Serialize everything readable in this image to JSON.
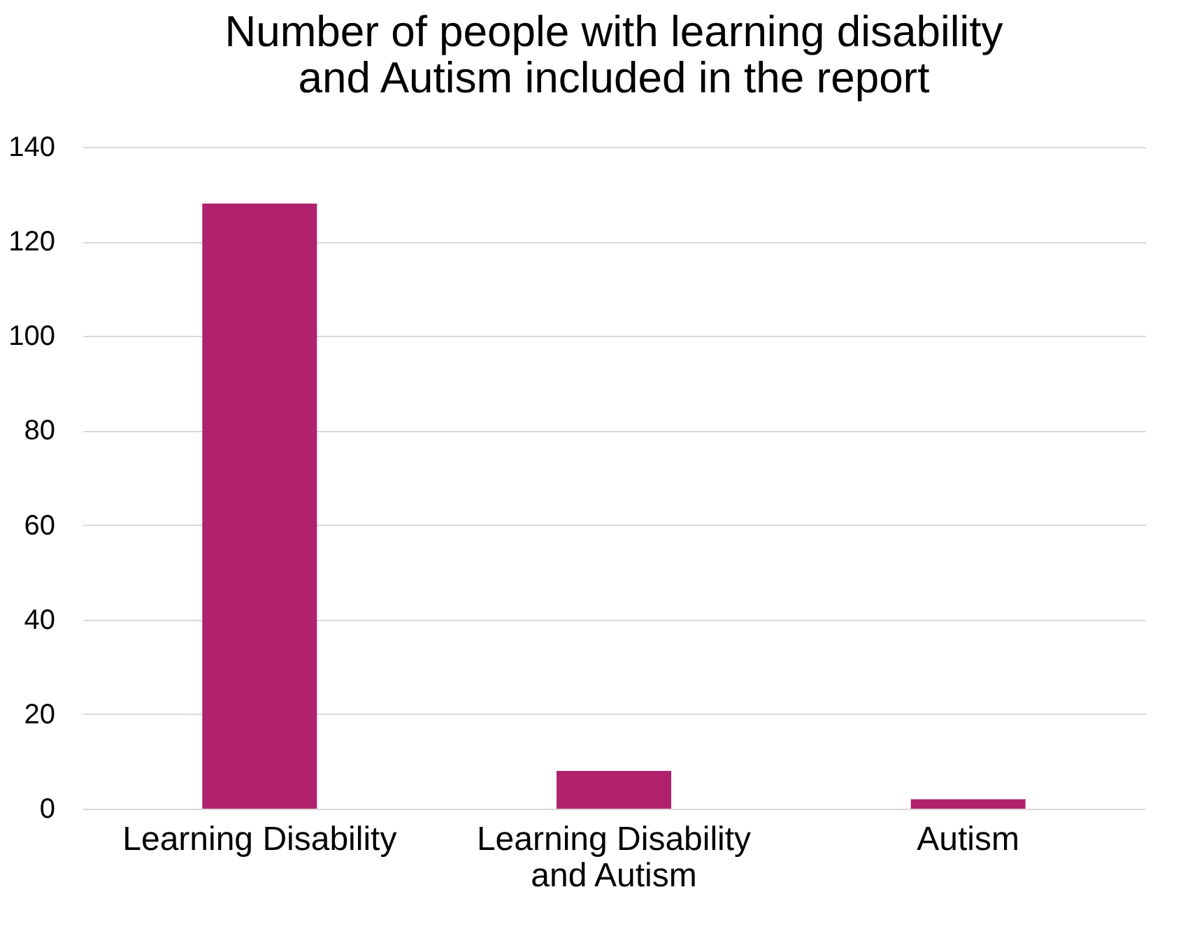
{
  "chart_data": {
    "type": "bar",
    "title": [
      "Number of people with learning disability",
      "and Autism included in the report"
    ],
    "categories": [
      "Learning Disability",
      "Learning Disability and Autism",
      "Autism"
    ],
    "values": [
      128,
      8,
      2
    ],
    "color": "#b0226e",
    "ylim": [
      0,
      140
    ],
    "yticks": [
      0,
      20,
      40,
      60,
      80,
      100,
      120,
      140
    ],
    "grid": "y"
  }
}
